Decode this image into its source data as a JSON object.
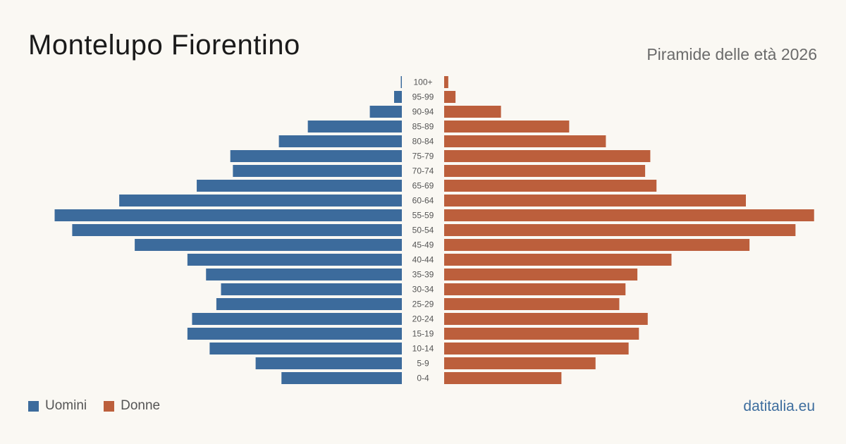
{
  "header": {
    "title": "Montelupo Fiorentino",
    "subtitle": "Piramide delle età 2026"
  },
  "legend": {
    "men_label": "Uomini",
    "women_label": "Donne"
  },
  "brand": "datitalia.eu",
  "colors": {
    "men": "#3c6b9c",
    "women": "#bc5f3c",
    "background": "#faf8f3"
  },
  "chart_data": {
    "type": "bar",
    "orientation": "horizontal-pyramid",
    "categories": [
      "100+",
      "95-99",
      "90-94",
      "85-89",
      "80-84",
      "75-79",
      "70-74",
      "65-69",
      "60-64",
      "55-59",
      "50-54",
      "45-49",
      "40-44",
      "35-39",
      "30-34",
      "25-29",
      "20-24",
      "15-19",
      "10-14",
      "5-9",
      "0-4"
    ],
    "series": [
      {
        "name": "Uomini",
        "values": [
          2,
          15,
          62,
          182,
          238,
          332,
          327,
          397,
          547,
          672,
          638,
          517,
          415,
          379,
          350,
          359,
          406,
          415,
          372,
          283,
          233
        ]
      },
      {
        "name": "Donne",
        "values": [
          8,
          22,
          110,
          242,
          313,
          399,
          389,
          411,
          584,
          716,
          680,
          591,
          440,
          374,
          351,
          339,
          394,
          377,
          357,
          293,
          227
        ]
      }
    ],
    "xlim": [
      0,
      730
    ],
    "grid": false,
    "legend_position": "bottom-left"
  }
}
